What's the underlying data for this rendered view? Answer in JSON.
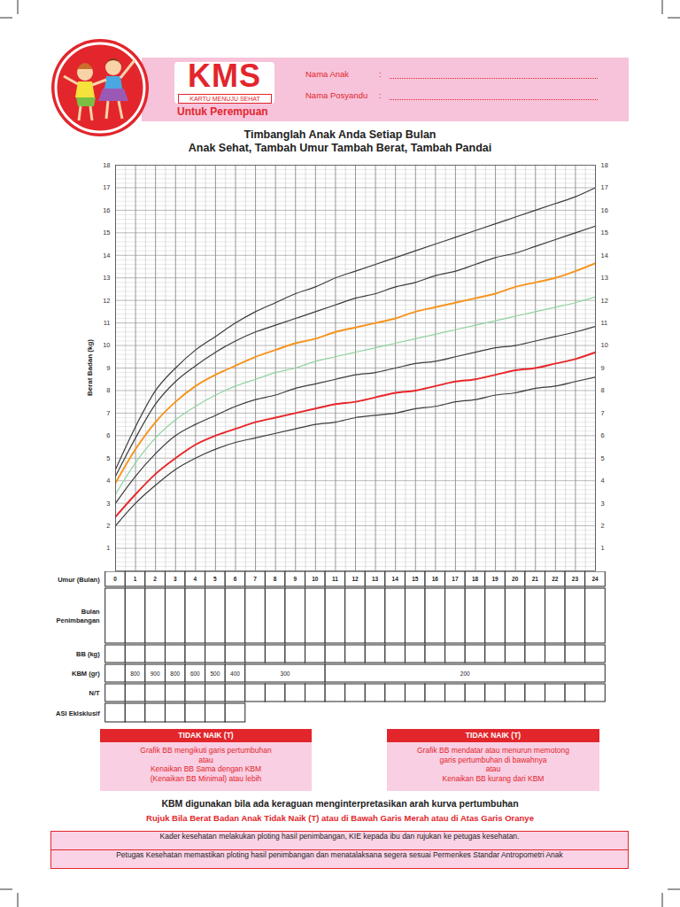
{
  "header": {
    "logo": "KMS",
    "logo_subtitle": "KARTU MENUJU SEHAT",
    "subtitle": "Untuk Perempuan",
    "fields": [
      "Nama Anak",
      "Nama Posyandu"
    ],
    "separator": ":"
  },
  "chart_data": {
    "type": "line",
    "title": "Timbanglah Anak Anda Setiap Bulan",
    "subtitle": "Anak Sehat, Tambah Umur Tambah Berat, Tambah Pandai",
    "x_label": "Umur (Bulan)",
    "y_label": "Berat Badan (kg)",
    "x": [
      0,
      1,
      2,
      3,
      4,
      5,
      6,
      7,
      8,
      9,
      10,
      11,
      12,
      13,
      14,
      15,
      16,
      17,
      18,
      19,
      20,
      21,
      22,
      23,
      24
    ],
    "series": [
      {
        "color": "#3c3c3c",
        "values": [
          4.5,
          6.4,
          8.0,
          9.0,
          9.8,
          10.4,
          11.0,
          11.5,
          11.9,
          12.3,
          12.6,
          13.0,
          13.3,
          13.6,
          13.9,
          14.2,
          14.5,
          14.8,
          15.1,
          15.4,
          15.7,
          16.0,
          16.3,
          16.6,
          17.0
        ]
      },
      {
        "color": "#3c3c3c",
        "values": [
          4.2,
          5.9,
          7.4,
          8.4,
          9.1,
          9.7,
          10.2,
          10.6,
          10.9,
          11.2,
          11.5,
          11.8,
          12.1,
          12.3,
          12.6,
          12.8,
          13.1,
          13.3,
          13.6,
          13.9,
          14.1,
          14.4,
          14.7,
          15.0,
          15.3
        ]
      },
      {
        "color": "#f7941d",
        "values": [
          3.9,
          5.4,
          6.6,
          7.5,
          8.2,
          8.7,
          9.1,
          9.5,
          9.8,
          10.1,
          10.3,
          10.6,
          10.8,
          11.0,
          11.2,
          11.5,
          11.7,
          11.9,
          12.1,
          12.3,
          12.6,
          12.8,
          13.0,
          13.3,
          13.65
        ]
      },
      {
        "color": "#8fd3a0",
        "values": [
          3.4,
          4.8,
          5.9,
          6.7,
          7.3,
          7.8,
          8.2,
          8.5,
          8.8,
          9.0,
          9.3,
          9.5,
          9.7,
          9.9,
          10.1,
          10.3,
          10.5,
          10.7,
          10.9,
          11.1,
          11.3,
          11.5,
          11.7,
          11.9,
          12.15
        ]
      },
      {
        "color": "#3c3c3c",
        "values": [
          3.0,
          4.2,
          5.2,
          6.0,
          6.5,
          6.9,
          7.3,
          7.6,
          7.8,
          8.1,
          8.3,
          8.5,
          8.7,
          8.8,
          9.0,
          9.2,
          9.3,
          9.5,
          9.7,
          9.9,
          10.0,
          10.2,
          10.4,
          10.6,
          10.85
        ]
      },
      {
        "color": "#e8262a",
        "values": [
          2.4,
          3.4,
          4.3,
          5.0,
          5.6,
          6.0,
          6.3,
          6.6,
          6.8,
          7.0,
          7.2,
          7.4,
          7.5,
          7.7,
          7.9,
          8.0,
          8.2,
          8.4,
          8.5,
          8.7,
          8.9,
          9.0,
          9.2,
          9.4,
          9.7
        ]
      },
      {
        "color": "#3c3c3c",
        "values": [
          2.0,
          3.0,
          3.8,
          4.5,
          5.0,
          5.4,
          5.7,
          5.9,
          6.1,
          6.3,
          6.5,
          6.6,
          6.8,
          6.9,
          7.0,
          7.2,
          7.3,
          7.5,
          7.6,
          7.8,
          7.9,
          8.1,
          8.2,
          8.4,
          8.6
        ]
      }
    ],
    "xlim": [
      0,
      24
    ],
    "xticks": [
      0,
      1,
      2,
      3,
      4,
      5,
      6,
      7,
      8,
      9,
      10,
      11,
      12,
      13,
      14,
      15,
      16,
      17,
      18,
      19,
      20,
      21,
      22,
      23,
      24
    ],
    "ylim": [
      0,
      18
    ],
    "yticks": [
      1,
      2,
      3,
      4,
      5,
      6,
      7,
      8,
      9,
      10,
      11,
      12,
      13,
      14,
      15,
      16,
      17,
      18
    ],
    "grid": true
  },
  "table": {
    "rows": [
      "Bulan Penimbangan",
      "BB (kg)",
      "KBM (gr)",
      "N/T",
      "ASI Eklsklusif"
    ],
    "kbm": [
      {
        "from": 1,
        "to": 1,
        "value": 800
      },
      {
        "from": 2,
        "to": 2,
        "value": 900
      },
      {
        "from": 3,
        "to": 3,
        "value": 800
      },
      {
        "from": 4,
        "to": 4,
        "value": 600
      },
      {
        "from": 5,
        "to": 5,
        "value": 500
      },
      {
        "from": 6,
        "to": 6,
        "value": 400
      },
      {
        "from": 7,
        "to": 10,
        "value": 300
      },
      {
        "from": 11,
        "to": 24,
        "value": 200
      }
    ]
  },
  "notes": {
    "boxes": [
      {
        "title": "TIDAK NAIK (T)",
        "lines": [
          "Grafik BB mengikuti garis pertumbuhan",
          "atau",
          "Kenaikan BB Sama dengan KBM",
          "(Kenaikan BB Minimal) atau lebih"
        ]
      },
      {
        "title": "TIDAK NAIK (T)",
        "lines": [
          "Grafik BB mendatar atau menurun memotong",
          "garis pertumbuhan di bawahnya",
          "atau",
          "Kenaikan BB kurang dari KBM"
        ]
      }
    ],
    "kbm_note": "KBM digunakan bila ada keraguan menginterpretasikan arah kurva pertumbuhan",
    "referral": "Rujuk Bila Berat Badan Anak Tidak Naik (T) atau di Bawah Garis Merah atau di Atas Garis Oranye",
    "instructions": [
      "Kader kesehatan melakukan ploting hasil penimbangan, KIE kepada ibu dan rujukan ke petugas kesehatan.",
      "Petugas Kesehatan memastikan ploting hasil penimbangan dan menatalaksana segera sesuai Permenkes Standar Antropometri Anak"
    ]
  }
}
